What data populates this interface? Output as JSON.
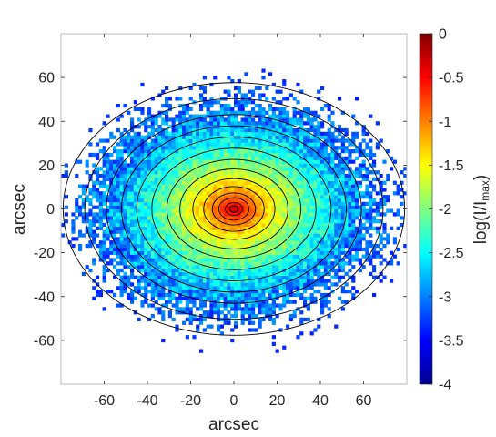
{
  "chart_data": {
    "type": "heatmap",
    "title": "",
    "xlabel": "arcsec",
    "ylabel": "arcsec",
    "xlim": [
      -80,
      80
    ],
    "ylim": [
      -80,
      80
    ],
    "xticks": [
      -60,
      -40,
      -20,
      0,
      20,
      40,
      60
    ],
    "yticks": [
      -60,
      -40,
      -20,
      0,
      20,
      40,
      60
    ],
    "colorbar": {
      "label_main": "log(I/I",
      "label_sub": "max",
      "label_close": ")",
      "range": [
        -4,
        0
      ],
      "ticks": [
        "0",
        "-0.5",
        "-1",
        "-1.5",
        "-2",
        "-2.5",
        "-3",
        "-3.5",
        "-4"
      ],
      "colormap": "jet"
    },
    "model": {
      "description_values": {
        "peak": 0,
        "background_floor": -4
      },
      "axis_ratio": 0.73,
      "center": [
        0,
        0
      ]
    },
    "contours": {
      "color": "#000000",
      "semi_major_axes": [
        2,
        4,
        7,
        10,
        14,
        19,
        25,
        31,
        38,
        45,
        52,
        59,
        69,
        79
      ]
    }
  }
}
